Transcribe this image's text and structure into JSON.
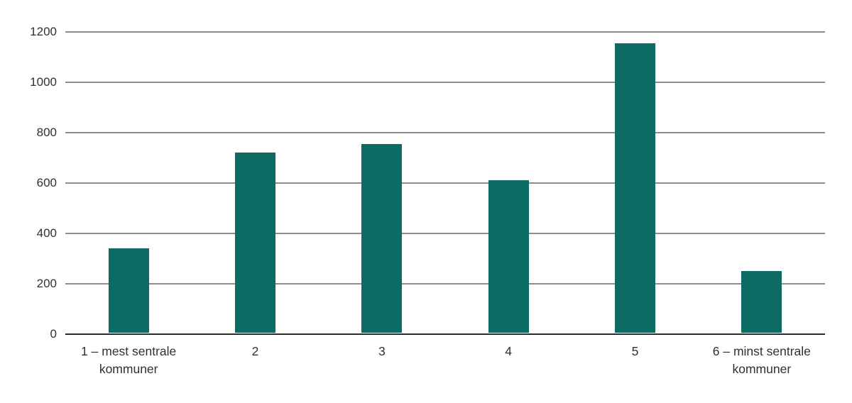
{
  "chart_data": {
    "type": "bar",
    "categories": [
      "1 – mest sentrale kommuner",
      "2",
      "3",
      "4",
      "5",
      "6 – minst sentrale kommuner"
    ],
    "values": [
      335,
      715,
      750,
      605,
      1150,
      245
    ],
    "title": "",
    "xlabel": "",
    "ylabel": "",
    "ylim": [
      0,
      1200
    ],
    "yticks": [
      0,
      200,
      400,
      600,
      800,
      1000,
      1200
    ],
    "grid": "horizontal",
    "legend": "none",
    "colors": {
      "bar": "#0c6b62",
      "gridline": "#8d8d8d",
      "axis_line": "#2b2b2b",
      "text": "#303030"
    }
  }
}
